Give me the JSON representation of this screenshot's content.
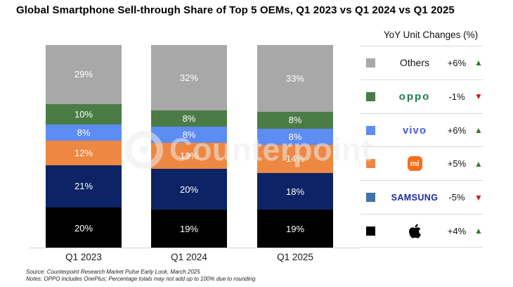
{
  "title": "Global Smartphone Sell-through Share of Top 5 OEMs, Q1 2023 vs Q1 2024 vs Q1 2025",
  "legend": {
    "header": "YoY Unit Changes (%)",
    "rows": [
      {
        "name": "Others",
        "label": "Others",
        "change": "+6%",
        "direction": "up",
        "swatch": "#a8a8a8"
      },
      {
        "name": "OPPO",
        "label": "oppo",
        "change": "-1%",
        "direction": "down",
        "swatch": "#4a7c45"
      },
      {
        "name": "vivo",
        "label": "vivo",
        "change": "+6%",
        "direction": "up",
        "swatch": "#5d8cf2"
      },
      {
        "name": "Xiaomi",
        "label": "mi",
        "change": "+5%",
        "direction": "up",
        "swatch": "#ee8742"
      },
      {
        "name": "Samsung",
        "label": "SAMSUNG",
        "change": "-5%",
        "direction": "down",
        "swatch": "#4273ab"
      },
      {
        "name": "Apple",
        "label": "",
        "change": "+4%",
        "direction": "up",
        "swatch": "#000000",
        "icon": "apple-logo"
      }
    ]
  },
  "icons": {
    "up_triangle": "▲",
    "down_triangle": "▼"
  },
  "colors": {
    "up": "#2f7d32",
    "down": "#cd1a1a",
    "oppo_logo": "#1e7b4f",
    "vivo_logo": "#4959e3",
    "mi_badge": "#f46f1b",
    "samsung_logo": "#1b2aa0",
    "axis_line": "#cfcfcf"
  },
  "chart_data": {
    "type": "bar",
    "stacked": true,
    "title": "Global Smartphone Sell-through Share of Top 5 OEMs, Q1 2023 vs Q1 2024 vs Q1 2025",
    "categories": [
      "Q1 2023",
      "Q1 2024",
      "Q1 2025"
    ],
    "stack_order": "bottom-to-top",
    "series": [
      {
        "name": "Apple",
        "color": "#000000",
        "values": [
          20,
          19,
          19
        ]
      },
      {
        "name": "Samsung",
        "color": "#0c2365",
        "values": [
          21,
          20,
          18
        ]
      },
      {
        "name": "Xiaomi",
        "color": "#ee8742",
        "values": [
          12,
          13,
          14
        ]
      },
      {
        "name": "vivo",
        "color": "#5d8cf2",
        "values": [
          8,
          8,
          8
        ]
      },
      {
        "name": "OPPO",
        "color": "#4a7c45",
        "values": [
          10,
          8,
          8
        ]
      },
      {
        "name": "Others",
        "color": "#a8a8a8",
        "values": [
          29,
          32,
          33
        ]
      }
    ],
    "unit": "%",
    "ylim": [
      0,
      100
    ],
    "value_labels": true,
    "legend_position": "right",
    "yoy_changes": {
      "Others": "+6%",
      "OPPO": "-1%",
      "vivo": "+6%",
      "Xiaomi": "+5%",
      "Samsung": "-5%",
      "Apple": "+4%"
    }
  },
  "watermark": {
    "text": "Counterpoint"
  },
  "footer": {
    "source": "Source: Counterpoint Research Market Pulse Early Look, March 2025",
    "notes": "Notes: OPPO includes OnePlus; Percentage totals may not add up to 100% due to rounding"
  }
}
